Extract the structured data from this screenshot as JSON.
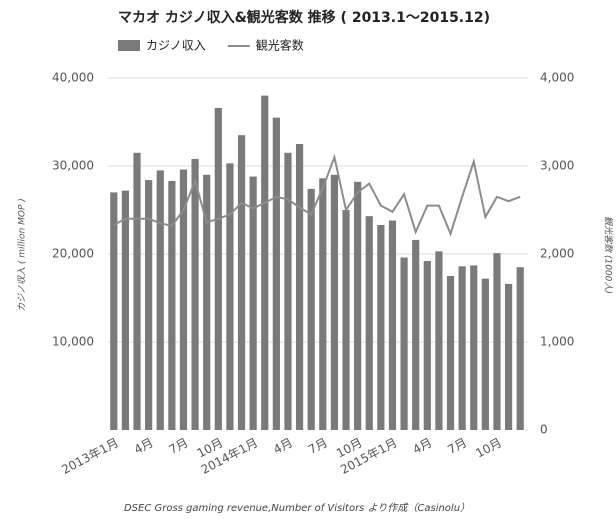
{
  "chart_data": {
    "type": "bar_line",
    "title": "マカオ カジノ収入&観光客数 推移 ( 2013.1～2015.12)",
    "ylabel": "カジノ収入 ( million MOP )",
    "y2label": "観光客数 (1000人)",
    "caption": "DSEC Gross gaming revenue,Number of Visitors より作成（Casinolu）",
    "categories": [
      "2013年1月",
      null,
      null,
      "4月",
      null,
      null,
      "7月",
      null,
      null,
      "10月",
      null,
      null,
      "2014年1月",
      null,
      null,
      "4月",
      null,
      null,
      "7月",
      null,
      null,
      "10月",
      null,
      null,
      "2015年1月",
      null,
      null,
      "4月",
      null,
      null,
      "7月",
      null,
      null,
      "10月",
      null,
      null
    ],
    "series": [
      {
        "name": "カジノ収入",
        "color": "#7a7a7a",
        "kind": "bar",
        "values": [
          27000,
          27200,
          31500,
          28400,
          29500,
          28300,
          29600,
          30800,
          29000,
          36600,
          30300,
          33500,
          28800,
          38000,
          35500,
          31500,
          32500,
          27400,
          28600,
          29000,
          25000,
          28200,
          24300,
          23300,
          23800,
          19600,
          21600,
          19200,
          20300,
          17500,
          18600,
          18700,
          17200,
          20100,
          16600,
          18500
        ]
      },
      {
        "name": "観光客数",
        "color": "#8c8c8c",
        "kind": "line",
        "axis": "y2",
        "values": [
          2330,
          2400,
          2400,
          2400,
          2350,
          2320,
          2500,
          2830,
          2360,
          2400,
          2450,
          2580,
          2520,
          2580,
          2650,
          2620,
          2530,
          2450,
          2750,
          3100,
          2500,
          2700,
          2800,
          2550,
          2480,
          2680,
          2250,
          2550,
          2550,
          2230,
          2650,
          3050,
          2420,
          2650,
          2600,
          2650
        ]
      }
    ],
    "ylim": [
      0,
      40000
    ],
    "yticks": [
      {
        "value": 10000,
        "label": "10,000"
      },
      {
        "value": 20000,
        "label": "20,000"
      },
      {
        "value": 30000,
        "label": "30,000"
      },
      {
        "value": 40000,
        "label": "40,000"
      }
    ],
    "y2lim": [
      0,
      4000
    ],
    "y2ticks": [
      0,
      {
        "value": 1000,
        "label": "1,000"
      },
      {
        "value": 2000,
        "label": "2,000"
      },
      {
        "value": 3000,
        "label": "3,000"
      },
      {
        "value": 4000,
        "label": "4,000"
      }
    ],
    "grid": true,
    "legend": "top-left"
  }
}
